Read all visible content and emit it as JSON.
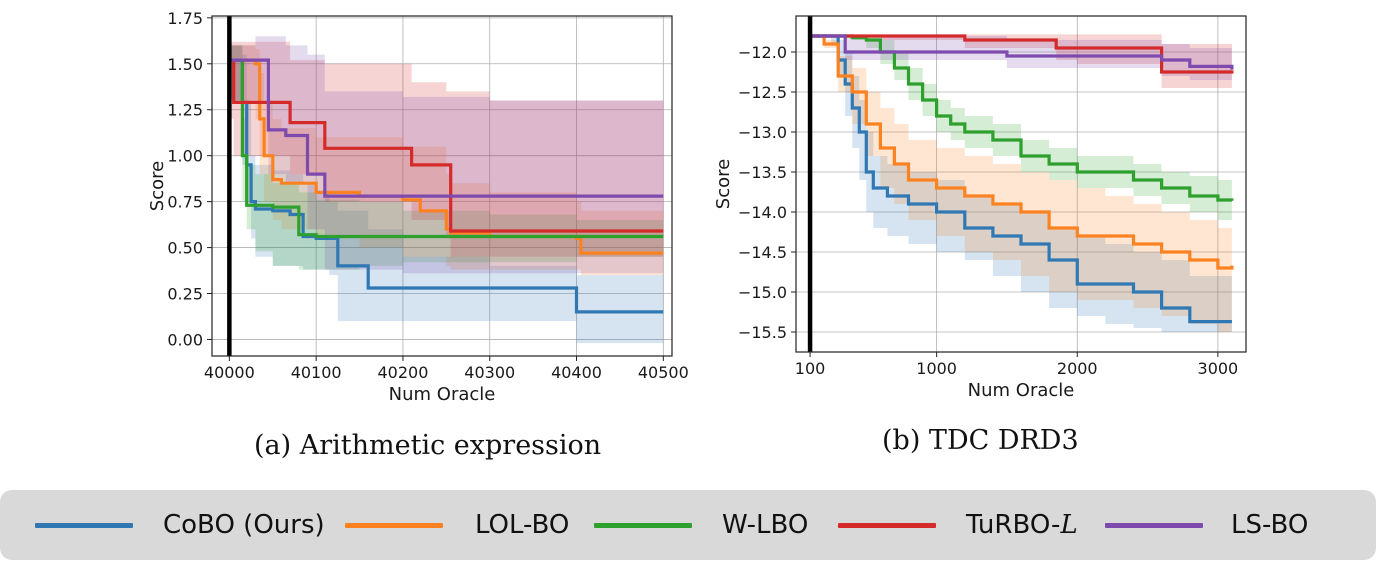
{
  "colors": {
    "CoBO (Ours)": "#2f78b4",
    "LOL-BO": "#fb8220",
    "W-LBO": "#2ea02d",
    "TuRBO-L": "#d42a2a",
    "LS-BO": "#7e4aae"
  },
  "legend": {
    "items": [
      {
        "label": "CoBO (Ours)",
        "color": "#2f78b4"
      },
      {
        "label": "LOL-BO",
        "color": "#fb8220"
      },
      {
        "label": "W-LBO",
        "color": "#2ea02d"
      },
      {
        "label": "TuRBO-⁠",
        "label_main": "TuRBO-",
        "label_italic": "L",
        "color": "#d42a2a"
      },
      {
        "label": "LS-BO",
        "color": "#7e4aae"
      }
    ]
  },
  "chart_data": [
    {
      "type": "line",
      "caption": "(a) Arithmetic expression",
      "xlabel": "Num Oracle",
      "ylabel": "Score",
      "xlim": [
        39980,
        40510
      ],
      "ylim": [
        -0.09,
        1.76
      ],
      "xticks": [
        "40000",
        "40100",
        "40200",
        "40300",
        "40400",
        "40500"
      ],
      "yticks": [
        "0.00",
        "0.25",
        "0.50",
        "0.75",
        "1.00",
        "1.25",
        "1.50",
        "1.75"
      ],
      "vline_x": 40000,
      "grid": true,
      "series": [
        {
          "name": "CoBO (Ours)",
          "x": [
            40000,
            40010,
            40015,
            40020,
            40025,
            40030,
            40050,
            40070,
            40085,
            40100,
            40115,
            40125,
            40160,
            40200,
            40300,
            40395,
            40400,
            40500
          ],
          "y": [
            1.52,
            1.52,
            1.29,
            0.95,
            0.75,
            0.71,
            0.7,
            0.68,
            0.56,
            0.55,
            0.55,
            0.4,
            0.28,
            0.28,
            0.28,
            0.28,
            0.15,
            0.15
          ],
          "lower": [
            1.3,
            1.3,
            0.95,
            0.75,
            0.55,
            0.45,
            0.4,
            0.4,
            0.38,
            0.38,
            0.35,
            0.1,
            0.1,
            0.1,
            0.1,
            0.1,
            -0.02,
            -0.02
          ],
          "upper": [
            1.6,
            1.6,
            1.55,
            1.3,
            1.0,
            0.95,
            0.92,
            0.9,
            0.85,
            0.8,
            0.75,
            0.7,
            0.6,
            0.45,
            0.4,
            0.4,
            0.35,
            0.35
          ]
        },
        {
          "name": "LOL-BO",
          "x": [
            40000,
            40020,
            40030,
            40035,
            40040,
            40050,
            40060,
            40100,
            40150,
            40200,
            40220,
            40250,
            40255,
            40300,
            40400,
            40405,
            40500
          ],
          "y": [
            1.52,
            1.52,
            1.5,
            1.2,
            1.0,
            0.87,
            0.85,
            0.8,
            0.78,
            0.76,
            0.7,
            0.6,
            0.58,
            0.56,
            0.55,
            0.47,
            0.47
          ],
          "lower": [
            1.3,
            1.3,
            1.2,
            0.9,
            0.75,
            0.65,
            0.6,
            0.55,
            0.5,
            0.45,
            0.45,
            0.4,
            0.38,
            0.38,
            0.38,
            0.35,
            0.35
          ],
          "upper": [
            1.6,
            1.6,
            1.58,
            1.45,
            1.3,
            1.2,
            1.15,
            1.1,
            1.1,
            1.05,
            1.05,
            0.9,
            0.85,
            0.8,
            0.75,
            0.7,
            0.7
          ]
        },
        {
          "name": "W-LBO",
          "x": [
            40000,
            40010,
            40015,
            40020,
            40030,
            40050,
            40080,
            40100,
            40150,
            40200,
            40300,
            40400,
            40500
          ],
          "y": [
            1.52,
            1.52,
            1.0,
            0.73,
            0.73,
            0.72,
            0.57,
            0.56,
            0.56,
            0.56,
            0.56,
            0.56,
            0.56
          ],
          "lower": [
            1.3,
            1.3,
            0.75,
            0.6,
            0.48,
            0.4,
            0.38,
            0.38,
            0.4,
            0.42,
            0.42,
            0.45,
            0.45
          ],
          "upper": [
            1.6,
            1.6,
            1.2,
            0.95,
            0.9,
            0.85,
            0.8,
            0.76,
            0.75,
            0.7,
            0.68,
            0.65,
            0.65
          ]
        },
        {
          "name": "TuRBO-L",
          "x": [
            40000,
            40005,
            40070,
            40110,
            40210,
            40250,
            40255,
            40300,
            40500
          ],
          "y": [
            1.52,
            1.29,
            1.18,
            1.04,
            0.95,
            0.95,
            0.59,
            0.59,
            0.59
          ],
          "lower": [
            1.2,
            1.0,
            0.9,
            0.75,
            0.65,
            0.55,
            0.45,
            0.45,
            0.45
          ],
          "upper": [
            1.62,
            1.62,
            1.52,
            1.5,
            1.4,
            1.35,
            1.35,
            1.3,
            1.3
          ]
        },
        {
          "name": "LS-BO",
          "x": [
            40000,
            40030,
            40045,
            40065,
            40090,
            40110,
            40200,
            40300,
            40500
          ],
          "y": [
            1.52,
            1.52,
            1.14,
            1.11,
            0.9,
            0.78,
            0.78,
            0.78,
            0.78
          ],
          "lower": [
            1.3,
            1.3,
            0.9,
            0.85,
            0.6,
            0.38,
            0.36,
            0.36,
            0.36
          ],
          "upper": [
            1.6,
            1.65,
            1.65,
            1.6,
            1.55,
            1.35,
            1.32,
            1.3,
            1.3
          ]
        }
      ]
    },
    {
      "type": "line",
      "caption": "(b) TDC DRD3",
      "xlabel": "Num Oracle",
      "ylabel": "Score",
      "xlim": [
        0,
        3200
      ],
      "ylim": [
        -15.75,
        -11.55
      ],
      "xticks": [
        "100",
        "1000",
        "2000",
        "3000"
      ],
      "xtick_values": [
        100,
        1000,
        2000,
        3000
      ],
      "yticks": [
        "−15.5",
        "−15.0",
        "−14.5",
        "−14.0",
        "−13.5",
        "−13.0",
        "−12.5",
        "−12.0"
      ],
      "ytick_values": [
        -15.5,
        -15.0,
        -14.5,
        -14.0,
        -13.5,
        -13.0,
        -12.5,
        -12.0
      ],
      "vline_x": 100,
      "grid": true,
      "series": [
        {
          "name": "CoBO (Ours)",
          "x": [
            100,
            250,
            300,
            350,
            400,
            450,
            500,
            550,
            650,
            800,
            1000,
            1200,
            1400,
            1600,
            1800,
            2000,
            2200,
            2400,
            2600,
            2800,
            3100
          ],
          "y": [
            -11.8,
            -11.8,
            -12.1,
            -12.4,
            -12.7,
            -13.0,
            -13.5,
            -13.7,
            -13.8,
            -13.9,
            -14.0,
            -14.2,
            -14.3,
            -14.4,
            -14.6,
            -14.9,
            -14.9,
            -15.0,
            -15.2,
            -15.37,
            -15.37
          ],
          "lower": [
            -11.8,
            -11.9,
            -12.3,
            -12.8,
            -13.2,
            -13.6,
            -14.0,
            -14.2,
            -14.3,
            -14.4,
            -14.5,
            -14.6,
            -14.8,
            -15.0,
            -15.2,
            -15.3,
            -15.4,
            -15.45,
            -15.5,
            -15.5,
            -15.5
          ],
          "upper": [
            -11.8,
            -11.8,
            -11.85,
            -12.0,
            -12.3,
            -12.6,
            -13.0,
            -13.3,
            -13.4,
            -13.5,
            -13.6,
            -13.8,
            -13.9,
            -14.0,
            -14.2,
            -14.3,
            -14.4,
            -14.5,
            -14.6,
            -14.8,
            -14.8
          ]
        },
        {
          "name": "LOL-BO",
          "x": [
            100,
            200,
            300,
            400,
            500,
            600,
            700,
            800,
            1000,
            1200,
            1400,
            1600,
            1800,
            2000,
            2200,
            2400,
            2600,
            2800,
            3000,
            3100
          ],
          "y": [
            -11.8,
            -11.9,
            -12.3,
            -12.5,
            -12.9,
            -13.2,
            -13.4,
            -13.6,
            -13.7,
            -13.8,
            -13.9,
            -14.0,
            -14.2,
            -14.3,
            -14.3,
            -14.4,
            -14.5,
            -14.6,
            -14.7,
            -14.67
          ],
          "lower": [
            -11.8,
            -11.95,
            -12.5,
            -12.9,
            -13.3,
            -13.7,
            -13.9,
            -14.1,
            -14.3,
            -14.5,
            -14.6,
            -14.8,
            -15.0,
            -15.1,
            -15.1,
            -15.2,
            -15.3,
            -15.4,
            -15.5,
            -15.5
          ],
          "upper": [
            -11.8,
            -11.85,
            -12.05,
            -12.2,
            -12.5,
            -12.7,
            -12.9,
            -13.1,
            -13.2,
            -13.3,
            -13.4,
            -13.5,
            -13.6,
            -13.7,
            -13.8,
            -13.9,
            -14.0,
            -14.1,
            -14.2,
            -14.2
          ]
        },
        {
          "name": "W-LBO",
          "x": [
            100,
            300,
            400,
            500,
            600,
            700,
            800,
            900,
            1000,
            1100,
            1200,
            1400,
            1600,
            1800,
            2000,
            2200,
            2400,
            2600,
            2800,
            3000,
            3100
          ],
          "y": [
            -11.8,
            -11.8,
            -11.82,
            -11.85,
            -12.0,
            -12.2,
            -12.4,
            -12.6,
            -12.8,
            -12.9,
            -13.0,
            -13.1,
            -13.3,
            -13.4,
            -13.5,
            -13.5,
            -13.6,
            -13.7,
            -13.8,
            -13.85,
            -13.86
          ],
          "lower": [
            -11.8,
            -11.8,
            -11.85,
            -11.95,
            -12.15,
            -12.35,
            -12.6,
            -12.8,
            -13.0,
            -13.1,
            -13.2,
            -13.3,
            -13.5,
            -13.6,
            -13.7,
            -13.7,
            -13.8,
            -13.9,
            -14.0,
            -14.1,
            -14.1
          ],
          "upper": [
            -11.8,
            -11.8,
            -11.8,
            -11.8,
            -11.85,
            -12.0,
            -12.2,
            -12.4,
            -12.6,
            -12.7,
            -12.8,
            -12.9,
            -13.1,
            -13.2,
            -13.3,
            -13.3,
            -13.4,
            -13.5,
            -13.55,
            -13.6,
            -13.6
          ]
        },
        {
          "name": "TuRBO-L",
          "x": [
            100,
            600,
            1200,
            1850,
            2000,
            2600,
            2650,
            3100
          ],
          "y": [
            -11.8,
            -11.8,
            -11.85,
            -11.95,
            -11.95,
            -12.25,
            -12.25,
            -12.27
          ],
          "lower": [
            -11.8,
            -11.85,
            -11.95,
            -12.1,
            -12.15,
            -12.45,
            -12.45,
            -12.45
          ],
          "upper": [
            -11.8,
            -11.78,
            -11.78,
            -11.78,
            -11.78,
            -11.9,
            -11.9,
            -11.95
          ]
        },
        {
          "name": "LS-BO",
          "x": [
            100,
            300,
            350,
            800,
            1500,
            2000,
            2600,
            2800,
            3100
          ],
          "y": [
            -11.8,
            -11.8,
            -12.0,
            -12.0,
            -12.05,
            -12.05,
            -12.1,
            -12.18,
            -12.22
          ],
          "lower": [
            -11.8,
            -11.8,
            -12.1,
            -12.1,
            -12.2,
            -12.2,
            -12.3,
            -12.35,
            -12.4
          ],
          "upper": [
            -11.8,
            -11.8,
            -11.8,
            -11.8,
            -11.85,
            -11.85,
            -11.9,
            -11.95,
            -11.98
          ]
        }
      ]
    }
  ]
}
